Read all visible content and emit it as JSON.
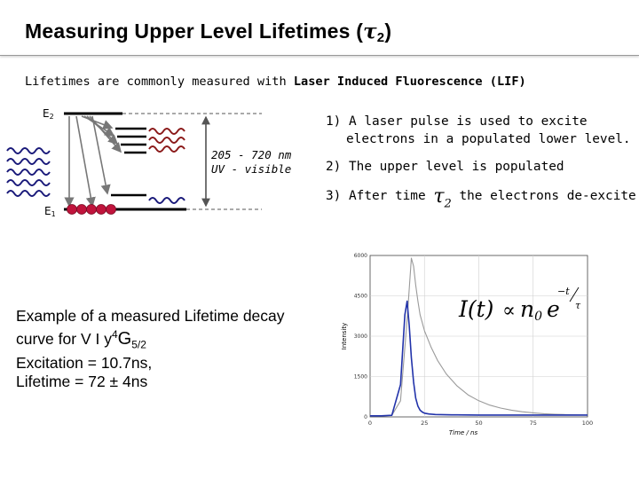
{
  "slide": {
    "title_prefix": "Measuring Upper Level Lifetimes (",
    "title_symbol": "τ",
    "title_subscript": "2",
    "title_suffix": ")",
    "intro_plain": "Lifetimes are commonly measured with ",
    "intro_bold": "Laser Induced Fluorescence (LIF)"
  },
  "diagram": {
    "upper_level_label": "E",
    "upper_level_subscript": "2",
    "lower_level_label": "E",
    "lower_level_subscript": "1",
    "wavelength_range": "205 - 720 nm",
    "spectral_region": "UV - visible",
    "colors": {
      "laser": "#1a1a7a",
      "fluorescence": "#8b1a1a",
      "electron": "#c0143c",
      "arrow": "#777777"
    }
  },
  "steps": {
    "step1_line1": "1) A laser pulse is used to excite",
    "step1_line2": "electrons in a populated lower level.",
    "step2": "2) The upper level is populated",
    "step3_before": "3) After time",
    "step3_symbol": "τ",
    "step3_subscript": "2",
    "step3_after": "the electrons de-excite"
  },
  "example": {
    "line1": "Example of a measured Lifetime decay",
    "line2_prefix": "curve   for V I y",
    "term_superscript": "4",
    "term_letter": "G",
    "term_subscript": "5/2",
    "excitation": "Excitation  = 10.7ns,",
    "lifetime": "Lifetime  = 72 ± 4ns"
  },
  "chart_data": {
    "type": "line",
    "xlabel": "Time / ns",
    "ylabel": "Intensity",
    "xlim": [
      0,
      100
    ],
    "ylim": [
      0,
      6000
    ],
    "x_ticks": [
      "0",
      "25",
      "50",
      "75",
      "100"
    ],
    "y_ticks": [
      "0",
      "1500",
      "3000",
      "4500",
      "6000"
    ],
    "formula": {
      "lhs": "I(t)",
      "relation": "∝",
      "coef": "n",
      "coef_sub": "0",
      "base": "e",
      "exp_num": "−t",
      "exp_den": "τ"
    },
    "series": [
      {
        "color": "#9a9a9a",
        "x": [
          0,
          5,
          10,
          14,
          17,
          19,
          20,
          21,
          22,
          23,
          25,
          28,
          31,
          35,
          40,
          45,
          50,
          55,
          60,
          65,
          70,
          75,
          80,
          85,
          90,
          95,
          100
        ],
        "y": [
          30,
          35,
          60,
          600,
          3600,
          5900,
          5600,
          4900,
          4300,
          3800,
          3200,
          2600,
          2100,
          1600,
          1150,
          820,
          600,
          440,
          330,
          250,
          190,
          150,
          120,
          100,
          85,
          75,
          70
        ]
      },
      {
        "color": "#2233aa",
        "x": [
          0,
          5,
          10,
          14,
          16,
          17,
          18,
          19,
          20,
          21,
          22,
          23,
          24,
          25,
          27,
          30,
          35,
          40,
          50,
          60,
          70,
          80,
          90,
          100
        ],
        "y": [
          40,
          40,
          60,
          1200,
          3800,
          4300,
          3400,
          2200,
          1300,
          700,
          400,
          250,
          180,
          140,
          110,
          90,
          80,
          75,
          70,
          70,
          70,
          70,
          70,
          70
        ]
      }
    ]
  }
}
